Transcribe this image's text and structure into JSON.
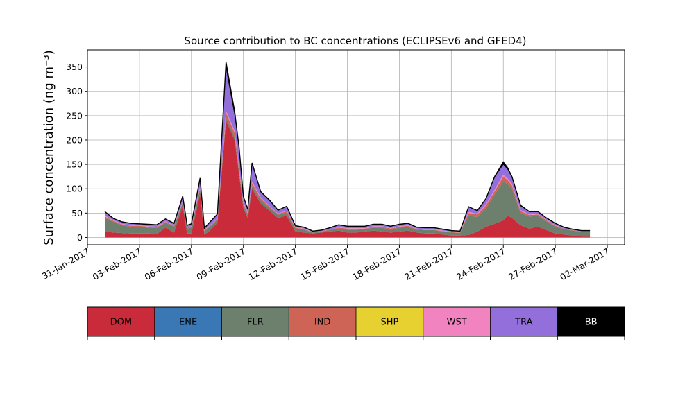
{
  "chart_data": {
    "type": "area",
    "stacked": true,
    "title": "Source contribution to BC concentrations (ECLIPSEv6 and GFED4)",
    "ylabel": "Surface concentration (ng m⁻³)",
    "xlabel": "",
    "grid": true,
    "xlim": [
      "2017-01-31",
      "2017-03-03"
    ],
    "ylim": [
      -15,
      385
    ],
    "x_ticks": [
      "2017-01-31",
      "2017-02-03",
      "2017-02-06",
      "2017-02-09",
      "2017-02-12",
      "2017-02-15",
      "2017-02-18",
      "2017-02-21",
      "2017-02-24",
      "2017-02-27",
      "2017-03-02"
    ],
    "x_tick_labels": [
      "31-Jan-2017",
      "03-Feb-2017",
      "06-Feb-2017",
      "09-Feb-2017",
      "12-Feb-2017",
      "15-Feb-2017",
      "18-Feb-2017",
      "21-Feb-2017",
      "24-Feb-2017",
      "27-Feb-2017",
      "02-Mar-2017"
    ],
    "y_ticks": [
      0,
      50,
      100,
      150,
      200,
      250,
      300,
      350
    ],
    "y_tick_labels": [
      "0",
      "50",
      "100",
      "150",
      "200",
      "250",
      "300",
      "350"
    ],
    "series_colors": [
      "#c92b3a",
      "#3a78b5",
      "#6d7f6d",
      "#cd6455",
      "#e7d130",
      "#f184c0",
      "#926fdb",
      "#000000"
    ],
    "x": [
      "2017-02-01",
      "2017-02-01T12:00",
      "2017-02-02",
      "2017-02-02T12:00",
      "2017-02-03",
      "2017-02-03T12:00",
      "2017-02-04",
      "2017-02-04T12:00",
      "2017-02-05",
      "2017-02-05T12:00",
      "2017-02-05T18:00",
      "2017-02-06",
      "2017-02-06T12:00",
      "2017-02-06T18:00",
      "2017-02-07",
      "2017-02-07T12:00",
      "2017-02-08",
      "2017-02-08T12:00",
      "2017-02-08T18:00",
      "2017-02-09",
      "2017-02-09T06:00",
      "2017-02-09T12:00",
      "2017-02-10",
      "2017-02-10T12:00",
      "2017-02-11",
      "2017-02-11T12:00",
      "2017-02-12",
      "2017-02-12T12:00",
      "2017-02-13",
      "2017-02-13T12:00",
      "2017-02-14",
      "2017-02-14T12:00",
      "2017-02-15",
      "2017-02-15T12:00",
      "2017-02-16",
      "2017-02-16T12:00",
      "2017-02-17",
      "2017-02-17T12:00",
      "2017-02-18",
      "2017-02-18T12:00",
      "2017-02-19",
      "2017-02-19T12:00",
      "2017-02-20",
      "2017-02-20T12:00",
      "2017-02-21",
      "2017-02-21T12:00",
      "2017-02-22",
      "2017-02-22T12:00",
      "2017-02-23",
      "2017-02-23T12:00",
      "2017-02-24",
      "2017-02-24T06:00",
      "2017-02-24T12:00",
      "2017-02-25",
      "2017-02-25T12:00",
      "2017-02-26",
      "2017-02-26T12:00",
      "2017-02-27",
      "2017-02-27T12:00",
      "2017-02-28",
      "2017-02-28T12:00",
      "2017-03-01"
    ],
    "series": [
      {
        "name": "DOM",
        "values": [
          12,
          10,
          9,
          8,
          8,
          8,
          7,
          20,
          10,
          65,
          8,
          8,
          90,
          6,
          12,
          30,
          240,
          200,
          130,
          60,
          40,
          100,
          70,
          55,
          40,
          45,
          12,
          10,
          8,
          10,
          12,
          14,
          10,
          10,
          12,
          14,
          12,
          10,
          12,
          14,
          10,
          8,
          8,
          6,
          4,
          4,
          5,
          12,
          22,
          28,
          35,
          45,
          40,
          25,
          18,
          22,
          15,
          8,
          6,
          4,
          2,
          2
        ]
      },
      {
        "name": "ENE",
        "values": [
          0,
          0,
          0,
          0,
          0,
          0,
          0,
          0,
          0,
          0,
          0,
          0,
          0,
          0,
          0,
          0,
          0,
          0,
          0,
          0,
          0,
          0,
          0,
          0,
          0,
          0,
          0,
          0,
          0,
          0,
          0,
          0,
          0,
          0,
          0,
          0,
          0,
          0,
          0,
          0,
          0,
          0,
          0,
          0,
          0,
          0,
          0,
          0,
          0,
          0,
          0,
          0,
          0,
          0,
          0,
          0,
          0,
          0,
          0,
          0,
          0,
          0
        ]
      },
      {
        "name": "FLR",
        "values": [
          28,
          22,
          16,
          14,
          14,
          12,
          12,
          10,
          12,
          6,
          10,
          12,
          10,
          6,
          8,
          6,
          6,
          6,
          6,
          6,
          6,
          6,
          6,
          6,
          6,
          6,
          6,
          6,
          2,
          2,
          3,
          4,
          6,
          6,
          5,
          6,
          8,
          6,
          8,
          8,
          6,
          7,
          7,
          6,
          6,
          5,
          40,
          30,
          38,
          60,
          80,
          65,
          60,
          25,
          25,
          22,
          18,
          14,
          11,
          10,
          10,
          10
        ]
      },
      {
        "name": "IND",
        "values": [
          3,
          2,
          2,
          2,
          2,
          2,
          2,
          2,
          2,
          2,
          2,
          2,
          3,
          2,
          2,
          2,
          10,
          8,
          6,
          4,
          3,
          6,
          4,
          3,
          2,
          3,
          2,
          1,
          1,
          1,
          1,
          2,
          2,
          2,
          1,
          2,
          2,
          2,
          2,
          2,
          1,
          1,
          1,
          1,
          1,
          1,
          5,
          5,
          6,
          7,
          10,
          8,
          7,
          4,
          3,
          3,
          2,
          2,
          1,
          1,
          0,
          0
        ]
      },
      {
        "name": "SHP",
        "values": [
          0,
          0,
          0,
          0,
          0,
          0,
          0,
          0,
          0,
          0,
          0,
          0,
          0,
          0,
          0,
          0,
          0,
          0,
          0,
          0,
          0,
          0,
          0,
          0,
          0,
          0,
          0,
          0,
          0,
          0,
          0,
          0,
          0,
          0,
          0,
          0,
          0,
          0,
          0,
          0,
          0,
          0,
          0,
          0,
          0,
          0,
          0,
          0,
          0,
          0,
          0,
          0,
          0,
          0,
          0,
          0,
          0,
          0,
          0,
          0,
          0,
          0
        ]
      },
      {
        "name": "WST",
        "values": [
          2,
          1,
          1,
          1,
          1,
          1,
          1,
          1,
          1,
          1,
          1,
          1,
          2,
          1,
          1,
          1,
          4,
          4,
          3,
          2,
          2,
          3,
          2,
          1,
          1,
          1,
          1,
          1,
          0,
          0,
          0,
          1,
          1,
          1,
          1,
          1,
          1,
          1,
          1,
          1,
          1,
          1,
          1,
          1,
          1,
          1,
          2,
          2,
          2,
          3,
          4,
          3,
          3,
          2,
          1,
          1,
          1,
          1,
          0,
          0,
          0,
          0
        ]
      },
      {
        "name": "TRA",
        "values": [
          7,
          3,
          3,
          3,
          2,
          3,
          3,
          4,
          3,
          10,
          3,
          4,
          16,
          3,
          5,
          8,
          85,
          30,
          35,
          10,
          6,
          35,
          10,
          10,
          6,
          8,
          2,
          2,
          1,
          1,
          3,
          4,
          3,
          3,
          3,
          3,
          3,
          3,
          3,
          3,
          2,
          2,
          2,
          2,
          1,
          1,
          10,
          5,
          10,
          25,
          20,
          18,
          12,
          8,
          5,
          4,
          3,
          3,
          2,
          1,
          1,
          1
        ]
      },
      {
        "name": "BB",
        "values": [
          1,
          1,
          1,
          1,
          1,
          1,
          1,
          1,
          1,
          1,
          1,
          1,
          1,
          1,
          1,
          1,
          15,
          10,
          5,
          2,
          1,
          3,
          2,
          2,
          1,
          1,
          1,
          1,
          1,
          1,
          1,
          1,
          1,
          1,
          1,
          1,
          1,
          1,
          1,
          1,
          1,
          1,
          1,
          1,
          1,
          1,
          1,
          1,
          2,
          2,
          6,
          4,
          3,
          2,
          1,
          1,
          1,
          1,
          1,
          1,
          1,
          1
        ]
      }
    ],
    "legend": {
      "placement": "bottom",
      "entries": [
        {
          "label": "DOM",
          "color": "#c92b3a",
          "text_color": "#000000"
        },
        {
          "label": "ENE",
          "color": "#3a78b5",
          "text_color": "#000000"
        },
        {
          "label": "FLR",
          "color": "#6d7f6d",
          "text_color": "#000000"
        },
        {
          "label": "IND",
          "color": "#cd6455",
          "text_color": "#000000"
        },
        {
          "label": "SHP",
          "color": "#e7d130",
          "text_color": "#000000"
        },
        {
          "label": "WST",
          "color": "#f184c0",
          "text_color": "#000000"
        },
        {
          "label": "TRA",
          "color": "#926fdb",
          "text_color": "#000000"
        },
        {
          "label": "BB",
          "color": "#000000",
          "text_color": "#ffffff"
        }
      ]
    }
  }
}
